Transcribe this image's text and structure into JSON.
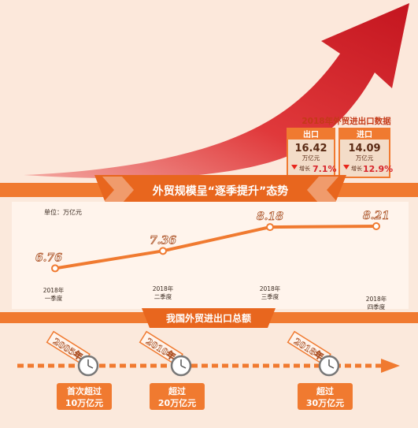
{
  "stats": {
    "title": "2018年外贸进出口数据",
    "export": {
      "label": "出口",
      "value": "16.42",
      "unit": "万亿元",
      "growth_label": "增长",
      "growth": "7.1%"
    },
    "import": {
      "label": "进口",
      "value": "14.09",
      "unit": "万亿元",
      "growth_label": "增长",
      "growth": "12.9%"
    }
  },
  "banner1": {
    "text": "外贸规模呈“逐季提升”态势"
  },
  "chart_data": {
    "type": "line",
    "unit_label": "单位：万亿元",
    "categories": [
      {
        "year": "2018年",
        "quarter": "一季度"
      },
      {
        "year": "2018年",
        "quarter": "二季度"
      },
      {
        "year": "2018年",
        "quarter": "三季度"
      },
      {
        "year": "2018年",
        "quarter": "四季度"
      }
    ],
    "values": [
      6.76,
      7.36,
      8.18,
      8.21
    ],
    "value_labels": [
      "6.76",
      "7.36",
      "8.18",
      "8.21"
    ]
  },
  "banner2": {
    "text": "我国外贸进出口总额"
  },
  "timeline": [
    {
      "year": "2005年",
      "line1": "首次超过",
      "line2": "10万亿元"
    },
    {
      "year": "2010年",
      "line1": "超过",
      "line2": "20万亿元"
    },
    {
      "year": "2018年",
      "line1": "超过",
      "line2": "30万亿元"
    }
  ],
  "colors": {
    "orange": "#f07a30",
    "orange_dark": "#e8661e",
    "red_arrow": "#d8262c",
    "background": "#fbe9dc",
    "label_text": "#b0562a"
  }
}
